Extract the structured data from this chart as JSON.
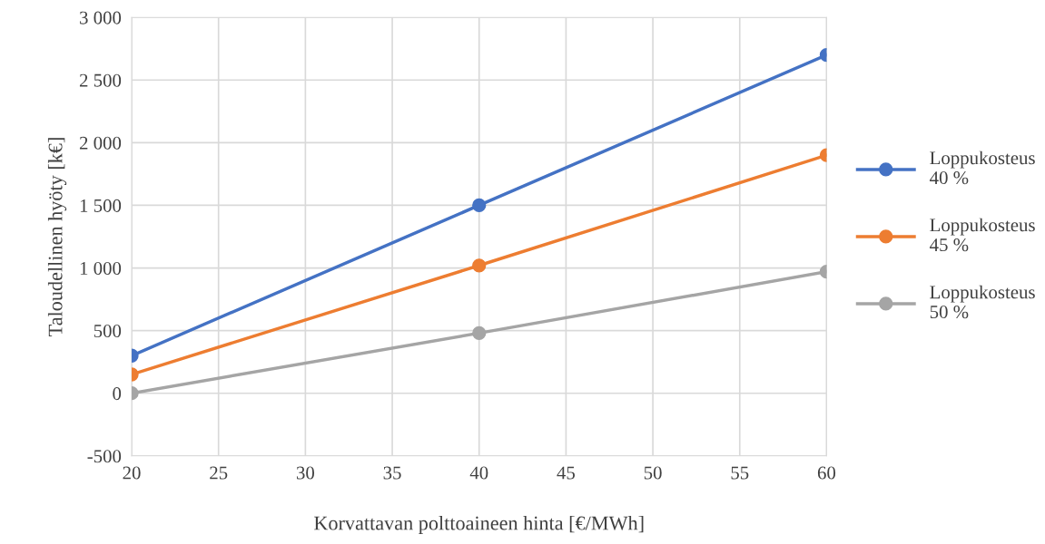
{
  "chart_data": {
    "type": "line",
    "xlabel": "Korvattavan polttoaineen hinta [€/MWh]",
    "ylabel": "Taloudellinen hyöty [k€]",
    "x": [
      20,
      40,
      60
    ],
    "series": [
      {
        "name": "Loppukosteus\n40 %",
        "color": "#4472c4",
        "values": [
          300,
          1500,
          2700
        ]
      },
      {
        "name": "Loppukosteus\n45 %",
        "color": "#ed7d31",
        "values": [
          150,
          1020,
          1900
        ]
      },
      {
        "name": "Loppukosteus\n50 %",
        "color": "#a5a5a5",
        "values": [
          0,
          480,
          970
        ]
      }
    ],
    "xlim": [
      20,
      60
    ],
    "xticks": [
      20,
      25,
      30,
      35,
      40,
      45,
      50,
      55,
      60
    ],
    "ylim": [
      -500,
      3000
    ],
    "yticks": [
      -500,
      0,
      500,
      {
        "value": 1000,
        "label": "1 000"
      },
      {
        "value": 1500,
        "label": "1 500"
      },
      {
        "value": 2000,
        "label": "2 000"
      },
      {
        "value": 2500,
        "label": "2 500"
      },
      {
        "value": 3000,
        "label": "3 000"
      }
    ],
    "grid": true,
    "legend": "right",
    "marker": "circle",
    "line_style": "solid"
  }
}
